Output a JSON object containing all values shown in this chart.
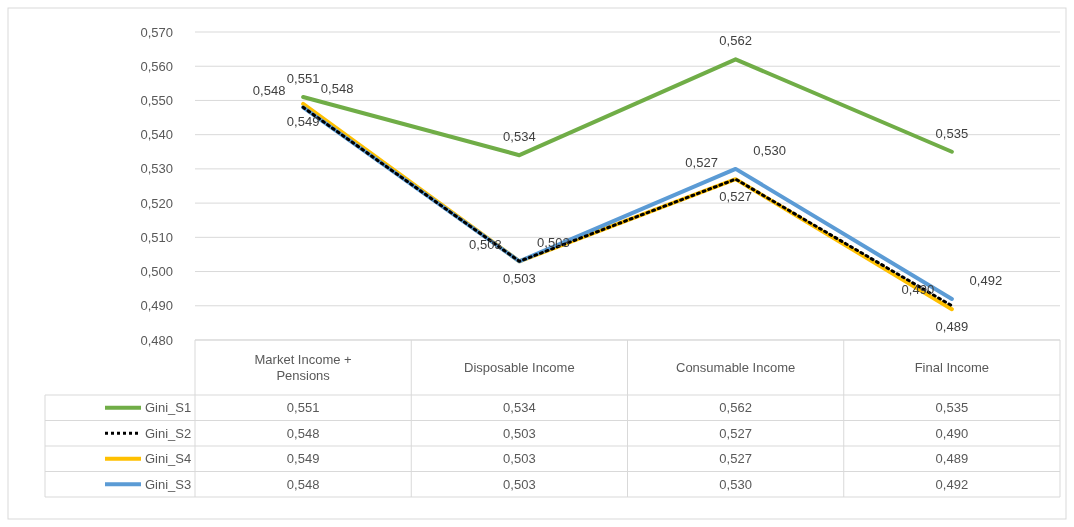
{
  "chart_data": {
    "type": "line",
    "categories": [
      "Market Income + Pensions",
      "Disposable Income",
      "Consumable Income",
      "Final Income"
    ],
    "series": [
      {
        "name": "Gini_S1",
        "color": "#70ad47",
        "values": [
          0.551,
          0.534,
          0.562,
          0.535
        ],
        "value_labels": [
          "0,551",
          "0,534",
          "0,562",
          "0,535"
        ]
      },
      {
        "name": "Gini_S2",
        "color": "#000000",
        "line_style": "dotted",
        "values": [
          0.548,
          0.503,
          0.527,
          0.49
        ],
        "value_labels": [
          "0,548",
          "0,503",
          "0,527",
          "0,490"
        ]
      },
      {
        "name": "Gini_S4",
        "color": "#ffc000",
        "values": [
          0.549,
          0.503,
          0.527,
          0.489
        ],
        "value_labels": [
          "0,549",
          "0,503",
          "0,527",
          "0,489"
        ]
      },
      {
        "name": "Gini_S3",
        "color": "#5b9bd5",
        "values": [
          0.548,
          0.503,
          0.53,
          0.492
        ],
        "value_labels": [
          "0,548",
          "0,503",
          "0,530",
          "0,492"
        ]
      }
    ],
    "ylim": [
      0.48,
      0.57
    ],
    "yticks": [
      {
        "value": 0.48,
        "label": "0,480"
      },
      {
        "value": 0.49,
        "label": "0,490"
      },
      {
        "value": 0.5,
        "label": "0,500"
      },
      {
        "value": 0.51,
        "label": "0,510"
      },
      {
        "value": 0.52,
        "label": "0,520"
      },
      {
        "value": 0.53,
        "label": "0,530"
      },
      {
        "value": 0.54,
        "label": "0,540"
      },
      {
        "value": 0.55,
        "label": "0,550"
      },
      {
        "value": 0.56,
        "label": "0,560"
      },
      {
        "value": 0.57,
        "label": "0,570"
      }
    ],
    "grid": "y",
    "legend": "bottom",
    "line_style": "solid"
  }
}
